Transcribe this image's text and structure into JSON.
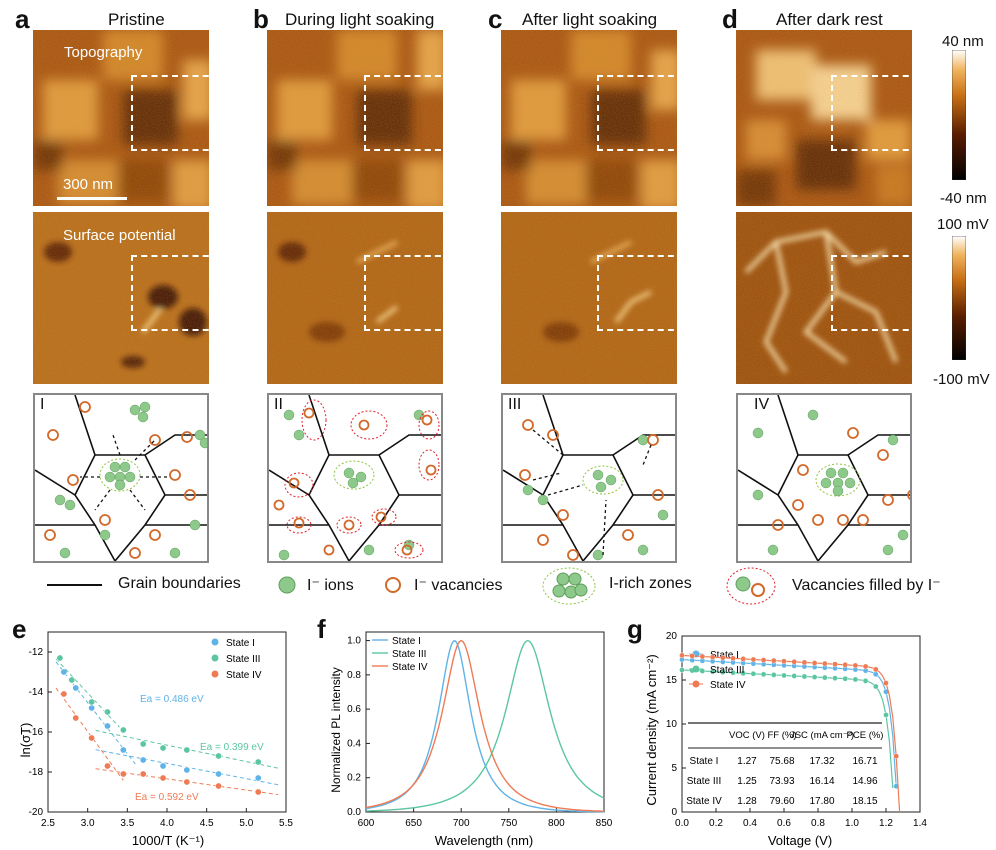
{
  "panel_letters": {
    "a": "a",
    "b": "b",
    "c": "c",
    "d": "d",
    "e": "e",
    "f": "f",
    "g": "g"
  },
  "columns": [
    {
      "title": "Pristine",
      "roman": "I"
    },
    {
      "title": "During light soaking",
      "roman": "II"
    },
    {
      "title": "After light soaking",
      "roman": "III"
    },
    {
      "title": "After dark rest",
      "roman": "IV"
    }
  ],
  "row_labels": {
    "topography": "Topography",
    "surface_potential": "Surface potential",
    "scale_bar": "300 nm"
  },
  "colorbars": {
    "topo_top": "40 nm",
    "topo_bottom": "-40 nm",
    "kpfm_top": "100 mV",
    "kpfm_bottom": "-100 mV"
  },
  "legend": {
    "grain_boundaries": "Grain boundaries",
    "ions": "I⁻ ions",
    "vacancies": "I⁻ vacancies",
    "i_rich": "I-rich zones",
    "filled": "Vacancies filled by I⁻"
  },
  "colors": {
    "ion": "#8dc98a",
    "ion_stroke": "#5e9e5b",
    "vacancy": "#d2692a",
    "irich": "#8cc53f",
    "filled": "#e0202a",
    "blue": "#5fb3e6",
    "green": "#5cc6a1",
    "orange": "#ef7b55"
  },
  "chart_data": [
    {
      "panel": "e",
      "type": "scatter",
      "xlabel": "1000/T (K⁻¹)",
      "ylabel": "ln(σT)",
      "xlim": [
        2.5,
        5.5
      ],
      "ylim": [
        -20,
        -11
      ],
      "xticks": [
        "2.5",
        "3.0",
        "3.5",
        "4.0",
        "4.5",
        "5.0",
        "5.5"
      ],
      "yticks": [
        "-12",
        "-14",
        "-16",
        "-18",
        "-20"
      ],
      "series": [
        {
          "name": "State I",
          "color": "#5fb3e6",
          "x": [
            2.7,
            2.85,
            3.05,
            3.25,
            3.45,
            3.7,
            3.95,
            4.25,
            4.65,
            5.15
          ],
          "y": [
            -13.0,
            -13.8,
            -14.8,
            -15.7,
            -16.9,
            -17.4,
            -17.7,
            -17.9,
            -18.1,
            -18.3
          ]
        },
        {
          "name": "State III",
          "color": "#5cc6a1",
          "x": [
            2.65,
            2.8,
            3.05,
            3.25,
            3.45,
            3.7,
            3.95,
            4.25,
            4.65,
            5.15
          ],
          "y": [
            -12.3,
            -13.4,
            -14.5,
            -15.0,
            -15.9,
            -16.6,
            -16.8,
            -16.9,
            -17.2,
            -17.5
          ]
        },
        {
          "name": "State IV",
          "color": "#ef7b55",
          "x": [
            2.7,
            2.85,
            3.05,
            3.25,
            3.45,
            3.7,
            3.95,
            4.25,
            4.65,
            5.15
          ],
          "y": [
            -14.1,
            -15.3,
            -16.3,
            -17.7,
            -18.1,
            -18.1,
            -18.3,
            -18.5,
            -18.7,
            -19.0
          ]
        }
      ],
      "annotations": [
        {
          "text": "Ea = 0.486 eV",
          "color": "#5fb3e6"
        },
        {
          "text": "Ea = 0.399 eV",
          "color": "#5cc6a1"
        },
        {
          "text": "Ea = 0.592 eV",
          "color": "#ef7b55"
        }
      ]
    },
    {
      "panel": "f",
      "type": "line",
      "xlabel": "Wavelength (nm)",
      "ylabel": "Normalized PL intensity",
      "xlim": [
        600,
        850
      ],
      "ylim": [
        0,
        1.05
      ],
      "xticks": [
        "600",
        "650",
        "700",
        "750",
        "800",
        "850"
      ],
      "yticks": [
        "0.0",
        "0.2",
        "0.4",
        "0.6",
        "0.8",
        "1.0"
      ],
      "series": [
        {
          "name": "State I",
          "color": "#5fb3e6",
          "peak": 693,
          "fwhm": 38
        },
        {
          "name": "State III",
          "color": "#5cc6a1",
          "peak": 770,
          "fwhm": 52
        },
        {
          "name": "State IV",
          "color": "#ef7b55",
          "peak": 700,
          "fwhm": 44
        }
      ]
    },
    {
      "panel": "g",
      "type": "line",
      "xlabel": "Voltage (V)",
      "ylabel": "Current density (mA cm⁻²)",
      "xlim": [
        0,
        1.4
      ],
      "ylim": [
        0,
        20
      ],
      "xticks": [
        "0.0",
        "0.2",
        "0.4",
        "0.6",
        "0.8",
        "1.0",
        "1.2",
        "1.4"
      ],
      "yticks": [
        "0",
        "5",
        "10",
        "15",
        "20"
      ],
      "series": [
        {
          "name": "State I",
          "color": "#5fb3e6",
          "voc": 1.27,
          "jsc": 17.32
        },
        {
          "name": "State III",
          "color": "#5cc6a1",
          "voc": 1.25,
          "jsc": 16.14
        },
        {
          "name": "State IV",
          "color": "#ef7b55",
          "voc": 1.28,
          "jsc": 17.8
        }
      ],
      "table": {
        "headers": [
          "",
          "VOC (V)",
          "FF (%)",
          "JSC (mA cm⁻²)",
          "PCE (%)"
        ],
        "rows": [
          [
            "State I",
            "1.27",
            "75.68",
            "17.32",
            "16.71"
          ],
          [
            "State III",
            "1.25",
            "73.93",
            "16.14",
            "14.96"
          ],
          [
            "State IV",
            "1.28",
            "79.60",
            "17.80",
            "18.15"
          ]
        ]
      }
    }
  ]
}
